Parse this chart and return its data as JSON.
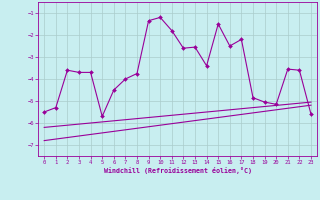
{
  "xlabel": "Windchill (Refroidissement éolien,°C)",
  "x_hours": [
    0,
    1,
    2,
    3,
    4,
    5,
    6,
    7,
    8,
    9,
    10,
    11,
    12,
    13,
    14,
    15,
    16,
    17,
    18,
    19,
    20,
    21,
    22,
    23
  ],
  "windchill_y": [
    -5.5,
    -5.3,
    -3.6,
    -3.7,
    -3.7,
    -5.7,
    -4.5,
    -4.0,
    -3.75,
    -1.35,
    -1.2,
    -1.8,
    -2.6,
    -2.55,
    -3.4,
    -1.5,
    -2.5,
    -2.2,
    -4.85,
    -5.05,
    -5.15,
    -3.55,
    -3.6,
    -5.6
  ],
  "temp_line1_y": [
    -6.2,
    -6.15,
    -6.1,
    -6.05,
    -6.0,
    -5.95,
    -5.9,
    -5.85,
    -5.8,
    -5.75,
    -5.7,
    -5.65,
    -5.6,
    -5.55,
    -5.5,
    -5.45,
    -5.4,
    -5.35,
    -5.3,
    -5.25,
    -5.2,
    -5.15,
    -5.1,
    -5.05
  ],
  "temp_line2_y": [
    -6.8,
    -6.73,
    -6.66,
    -6.59,
    -6.52,
    -6.45,
    -6.38,
    -6.31,
    -6.24,
    -6.17,
    -6.1,
    -6.03,
    -5.96,
    -5.89,
    -5.82,
    -5.75,
    -5.68,
    -5.61,
    -5.54,
    -5.47,
    -5.4,
    -5.33,
    -5.26,
    -5.19
  ],
  "line_color": "#990099",
  "bg_color": "#c8eef0",
  "grid_color": "#aacccc",
  "ylim": [
    -7.5,
    -0.5
  ],
  "yticks": [
    -7,
    -6,
    -5,
    -4,
    -3,
    -2,
    -1
  ],
  "xlim": [
    -0.5,
    23.5
  ]
}
